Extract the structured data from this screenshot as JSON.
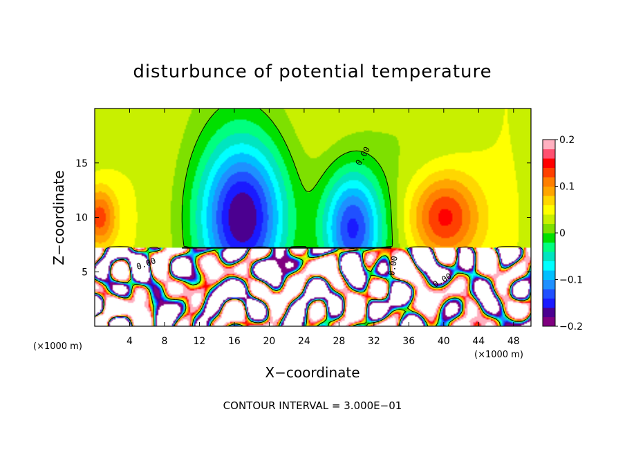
{
  "chart_data": {
    "type": "heatmap",
    "title": "disturbunce of potential temperature",
    "xlabel": "X−coordinate",
    "ylabel": "Z−coordinate",
    "x_unit": "(×1000 m)",
    "z_unit": "(×1000 m)",
    "xlim": [
      0,
      50
    ],
    "zlim": [
      0,
      20
    ],
    "x_ticks": [
      4,
      8,
      12,
      16,
      20,
      24,
      28,
      32,
      36,
      40,
      44,
      48
    ],
    "z_ticks": [
      5,
      10,
      15
    ],
    "x_tick_labels": [
      "4",
      "8",
      "12",
      "16",
      "20",
      "24",
      "28",
      "32",
      "36",
      "40",
      "44",
      "48"
    ],
    "z_tick_labels": [
      "5",
      "10",
      "15"
    ],
    "colorbar": {
      "range": [
        -0.2,
        0.2
      ],
      "ticks": [
        0.2,
        0.1,
        0,
        -0.1,
        -0.2
      ],
      "tick_labels": [
        "0.2",
        "0.1",
        "0",
        "−0.1",
        "−0.2"
      ],
      "colors": [
        "#800080",
        "#4b0090",
        "#1a1aff",
        "#2050ff",
        "#1e90ff",
        "#00bfff",
        "#00ffff",
        "#00e5c0",
        "#00ff7f",
        "#00e000",
        "#7ee000",
        "#c8f000",
        "#ffff00",
        "#ffd700",
        "#ffa500",
        "#ff7f00",
        "#ff4000",
        "#ff0000",
        "#ff5070",
        "#ffb0c0"
      ]
    },
    "contour_interval_label": "CONTOUR INTERVAL = 3.000E−01",
    "contour_labels": [
      "0.00"
    ],
    "features": [
      {
        "kind": "cold-anomaly",
        "x_center": 17,
        "z_center": 10,
        "x_half_width": 6.5,
        "z_half_height": 9,
        "min_value": -0.2
      },
      {
        "kind": "cold-anomaly",
        "x_center": 29.5,
        "z_center": 9,
        "x_half_width": 4.5,
        "z_half_height": 7,
        "min_value": -0.18
      },
      {
        "kind": "warm-anomaly",
        "x_center": 40,
        "z_center": 10,
        "x_half_width": 5,
        "z_half_height": 5,
        "max_value": 0.12
      },
      {
        "kind": "warm-anomaly",
        "x_center": 0.5,
        "z_center": 10,
        "x_half_width": 2.5,
        "z_half_height": 3.5,
        "max_value": 0.1
      },
      {
        "kind": "turbulent-boundary-layer",
        "z_top": 7.2
      }
    ]
  }
}
